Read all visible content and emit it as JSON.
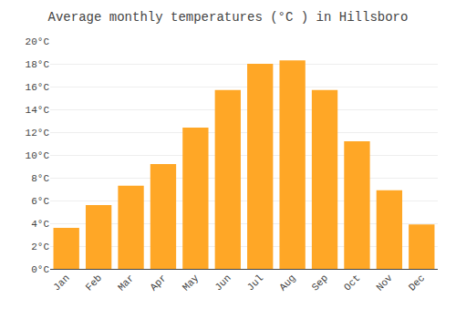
{
  "chart_data": {
    "type": "bar",
    "title": "Average monthly temperatures (°C ) in Hillsboro",
    "categories": [
      "Jan",
      "Feb",
      "Mar",
      "Apr",
      "May",
      "Jun",
      "Jul",
      "Aug",
      "Sep",
      "Oct",
      "Nov",
      "Dec"
    ],
    "values": [
      3.6,
      5.6,
      7.3,
      9.2,
      12.4,
      15.7,
      18.0,
      18.3,
      15.7,
      11.2,
      6.9,
      3.9
    ],
    "color": "#FFA726",
    "ylim": [
      0,
      20
    ],
    "yticks": [
      {
        "value": 0,
        "label": "0°C"
      },
      {
        "value": 2,
        "label": "2°C"
      },
      {
        "value": 4,
        "label": "4°C"
      },
      {
        "value": 6,
        "label": "6°C"
      },
      {
        "value": 8,
        "label": "8°C"
      },
      {
        "value": 10,
        "label": "10°C"
      },
      {
        "value": 12,
        "label": "12°C"
      },
      {
        "value": 14,
        "label": "14°C"
      },
      {
        "value": 16,
        "label": "16°C"
      },
      {
        "value": 18,
        "label": "18°C"
      },
      {
        "value": 20,
        "label": "20°C"
      }
    ],
    "grid": true
  }
}
